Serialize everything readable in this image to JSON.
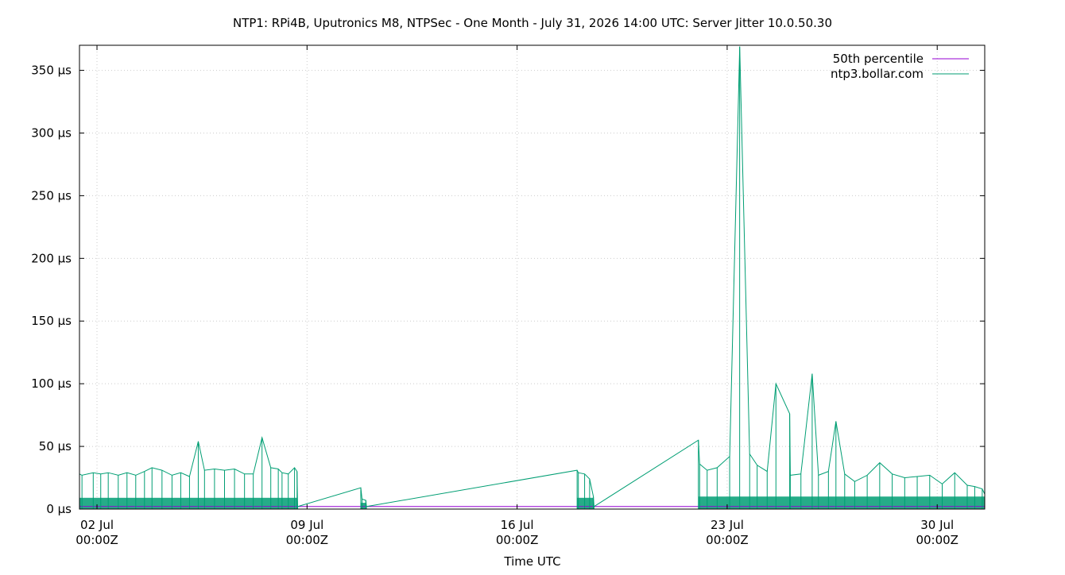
{
  "chart_data": {
    "type": "line",
    "title": "NTP1: RPi4B, Uputronics M8, NTPSec - One Month - July 31, 2026 14:00 UTC: Server Jitter 10.0.50.30",
    "xlabel": "Time UTC",
    "ylabel": "",
    "ylim": [
      0,
      370
    ],
    "xlim": [
      "2026-07-01T10:00Z",
      "2026-07-31T14:00Z"
    ],
    "grid": true,
    "legend_position": "top-right",
    "x_ticks": [
      {
        "date": "2026-07-02T00:00Z",
        "line1": "02 Jul",
        "line2": "00:00Z"
      },
      {
        "date": "2026-07-09T00:00Z",
        "line1": "09 Jul",
        "line2": "00:00Z"
      },
      {
        "date": "2026-07-16T00:00Z",
        "line1": "16 Jul",
        "line2": "00:00Z"
      },
      {
        "date": "2026-07-23T00:00Z",
        "line1": "23 Jul",
        "line2": "00:00Z"
      },
      {
        "date": "2026-07-30T00:00Z",
        "line1": "30 Jul",
        "line2": "00:00Z"
      }
    ],
    "y_ticks": [
      {
        "value": 0,
        "label": "0 µs"
      },
      {
        "value": 50,
        "label": "50 µs"
      },
      {
        "value": 100,
        "label": "100 µs"
      },
      {
        "value": 150,
        "label": "150 µs"
      },
      {
        "value": 200,
        "label": "200 µs"
      },
      {
        "value": 250,
        "label": "250 µs"
      },
      {
        "value": 300,
        "label": "300 µs"
      },
      {
        "value": 350,
        "label": "350 µs"
      }
    ],
    "series": [
      {
        "name": "50th percentile",
        "color": "#9400d3",
        "x": [
          "2026-07-01T10:00Z",
          "2026-07-31T14:00Z"
        ],
        "y": [
          2,
          2
        ]
      },
      {
        "name": "ntp3.bollar.com",
        "color": "#009e73",
        "baseline_band": [
          {
            "start": "2026-07-01T10:00Z",
            "end": "2026-07-08T16:00Z",
            "low": 0,
            "high": 9
          },
          {
            "start": "2026-07-10T19:00Z",
            "end": "2026-07-10T23:00Z",
            "low": 0,
            "high": 5
          },
          {
            "start": "2026-07-18T00:00Z",
            "end": "2026-07-18T13:00Z",
            "low": 0,
            "high": 9
          },
          {
            "start": "2026-07-22T01:00Z",
            "end": "2026-07-31T14:00Z",
            "low": 0,
            "high": 10
          }
        ],
        "x": [
          "2026-07-01T10:00Z",
          "2026-07-01T12:00Z",
          "2026-07-01T21:00Z",
          "2026-07-02T03:00Z",
          "2026-07-02T09:00Z",
          "2026-07-02T17:00Z",
          "2026-07-03T00:00Z",
          "2026-07-03T07:00Z",
          "2026-07-03T14:00Z",
          "2026-07-03T20:00Z",
          "2026-07-04T04:00Z",
          "2026-07-04T12:00Z",
          "2026-07-04T19:00Z",
          "2026-07-05T02:00Z",
          "2026-07-05T09:00Z",
          "2026-07-05T14:00Z",
          "2026-07-05T22:00Z",
          "2026-07-06T06:00Z",
          "2026-07-06T14:00Z",
          "2026-07-06T22:00Z",
          "2026-07-07T05:00Z",
          "2026-07-07T12:00Z",
          "2026-07-07T19:00Z",
          "2026-07-08T01:00Z",
          "2026-07-08T04:00Z",
          "2026-07-08T09:00Z",
          "2026-07-08T14:00Z",
          "2026-07-08T16:00Z",
          "2026-07-08T16:30Z",
          "2026-07-10T19:00Z",
          "2026-07-10T20:00Z",
          "2026-07-10T23:00Z",
          "2026-07-10T23:30Z",
          "2026-07-18T00:00Z",
          "2026-07-18T01:00Z",
          "2026-07-18T06:00Z",
          "2026-07-18T10:00Z",
          "2026-07-18T13:00Z",
          "2026-07-18T13:30Z",
          "2026-07-22T01:00Z",
          "2026-07-22T02:00Z",
          "2026-07-22T08:00Z",
          "2026-07-22T16:00Z",
          "2026-07-23T02:00Z",
          "2026-07-23T10:00Z",
          "2026-07-23T18:00Z",
          "2026-07-24T00:00Z",
          "2026-07-24T08:00Z",
          "2026-07-24T15:00Z",
          "2026-07-25T02:00Z",
          "2026-07-25T02:30Z",
          "2026-07-25T11:00Z",
          "2026-07-25T20:00Z",
          "2026-07-26T01:00Z",
          "2026-07-26T09:00Z",
          "2026-07-26T15:00Z",
          "2026-07-26T22:00Z",
          "2026-07-27T06:00Z",
          "2026-07-27T16:00Z",
          "2026-07-28T02:00Z",
          "2026-07-28T12:00Z",
          "2026-07-28T22:00Z",
          "2026-07-29T08:00Z",
          "2026-07-29T18:00Z",
          "2026-07-30T04:00Z",
          "2026-07-30T14:00Z",
          "2026-07-31T00:00Z",
          "2026-07-31T06:00Z",
          "2026-07-31T12:00Z",
          "2026-07-31T14:00Z"
        ],
        "y": [
          28,
          27,
          29,
          28,
          29,
          27,
          29,
          27,
          30,
          33,
          31,
          27,
          29,
          26,
          54,
          31,
          32,
          31,
          32,
          28,
          28,
          57,
          33,
          32,
          29,
          28,
          33,
          30,
          2,
          17,
          8,
          7,
          2,
          31,
          29,
          28,
          24,
          10,
          2,
          55,
          36,
          31,
          33,
          42,
          369,
          44,
          35,
          30,
          100,
          76,
          27,
          28,
          108,
          27,
          30,
          70,
          28,
          22,
          27,
          37,
          28,
          25,
          26,
          27,
          20,
          29,
          19,
          18,
          16,
          12
        ]
      }
    ]
  }
}
